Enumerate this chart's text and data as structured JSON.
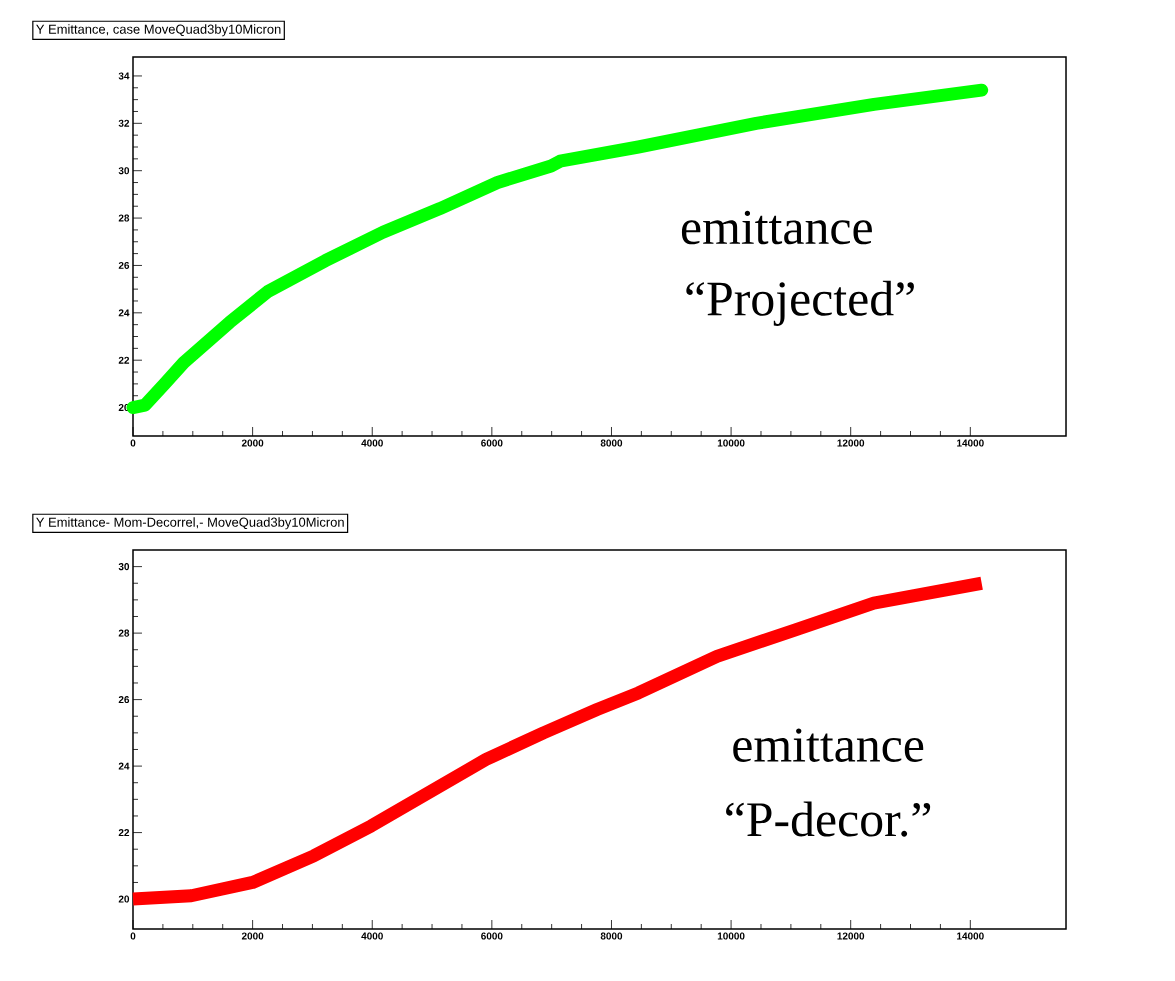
{
  "chart_data": [
    {
      "type": "line",
      "title": "Y Emittance, case  MoveQuad3by10Micron",
      "x": [
        0,
        200,
        528,
        848,
        1616,
        2256,
        3216,
        4179,
        5133,
        6095,
        6990,
        7140,
        8450,
        10420,
        12390,
        14190
      ],
      "series": [
        {
          "color": "#00ff00",
          "values": [
            20.0,
            20.1,
            21.0,
            21.9,
            23.6,
            24.9,
            26.2,
            27.4,
            28.4,
            29.5,
            30.2,
            30.4,
            31.0,
            32.0,
            32.8,
            33.4
          ]
        }
      ],
      "xlim": [
        0,
        15600
      ],
      "ylim": [
        18.8,
        34.8
      ],
      "xticks": [
        0,
        2000,
        4000,
        6000,
        8000,
        10000,
        12000,
        14000
      ],
      "yticks": [
        20,
        22,
        24,
        26,
        28,
        30,
        32,
        34
      ],
      "annotations": [
        "emittance",
        "“Projected”"
      ]
    },
    {
      "type": "line",
      "title": "Y Emittance- Mom-Decorrel,- MoveQuad3by10Micron",
      "x": [
        0,
        975,
        2000,
        3024,
        3983,
        4943,
        5903,
        6863,
        7759,
        8450,
        9764,
        11076,
        12386,
        14190
      ],
      "series": [
        {
          "color": "#ff0000",
          "values": [
            20.0,
            20.1,
            20.5,
            21.3,
            22.2,
            23.2,
            24.2,
            25.0,
            25.7,
            26.2,
            27.3,
            28.1,
            28.9,
            29.5
          ]
        }
      ],
      "xlim": [
        0,
        15600
      ],
      "ylim": [
        19.1,
        30.5
      ],
      "xticks": [
        0,
        2000,
        4000,
        6000,
        8000,
        10000,
        12000,
        14000
      ],
      "yticks": [
        20,
        22,
        24,
        26,
        28,
        30
      ],
      "annotations": [
        "emittance",
        "“P-decor.”"
      ]
    }
  ]
}
